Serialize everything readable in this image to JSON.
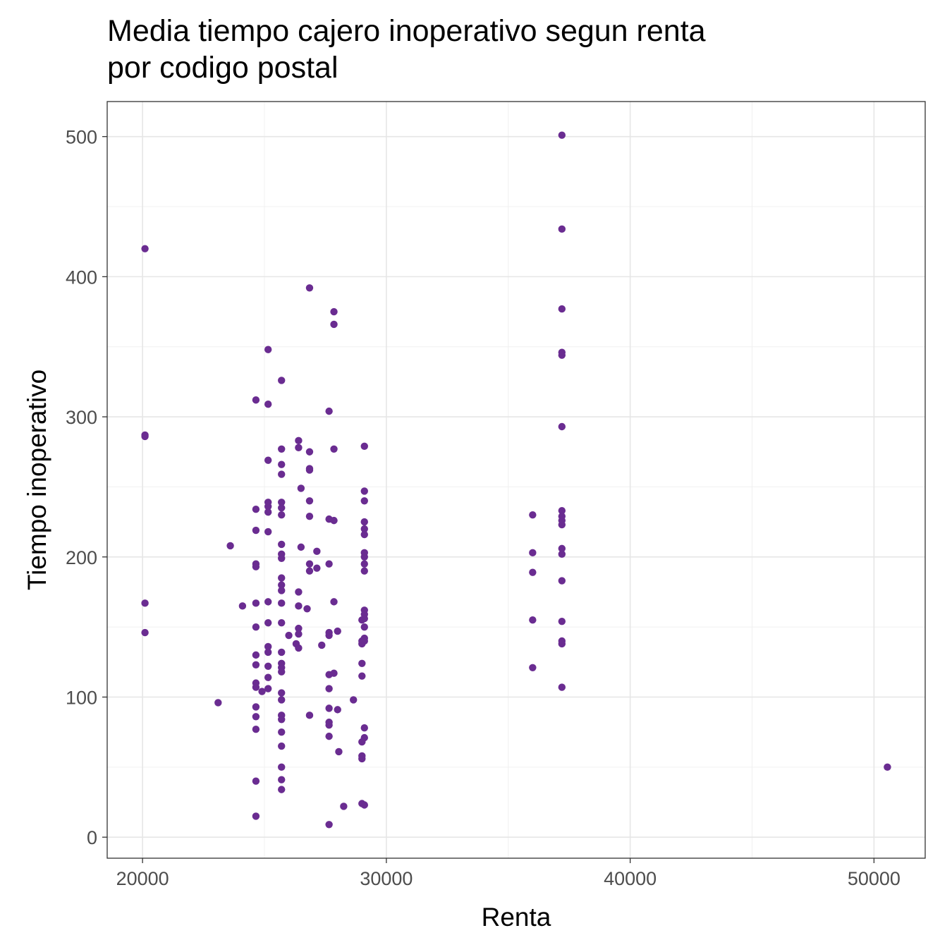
{
  "chart_data": {
    "type": "scatter",
    "title_lines": [
      "Media tiempo cajero inoperativo segun renta",
      "por codigo postal"
    ],
    "xlabel": "Renta",
    "ylabel": "Tiempo inoperativo",
    "xlim": [
      18550,
      52100
    ],
    "ylim": [
      -15,
      525
    ],
    "x_ticks": [
      20000,
      30000,
      40000,
      50000
    ],
    "y_ticks": [
      0,
      100,
      200,
      300,
      400,
      500
    ],
    "grid": true,
    "point_color": "#6a2c91",
    "points": [
      {
        "x": 20100,
        "y": 420
      },
      {
        "x": 20100,
        "y": 287
      },
      {
        "x": 20100,
        "y": 286
      },
      {
        "x": 20100,
        "y": 167
      },
      {
        "x": 20100,
        "y": 146
      },
      {
        "x": 23100,
        "y": 96
      },
      {
        "x": 23600,
        "y": 208
      },
      {
        "x": 24100,
        "y": 165
      },
      {
        "x": 24650,
        "y": 312
      },
      {
        "x": 24650,
        "y": 234
      },
      {
        "x": 24650,
        "y": 219
      },
      {
        "x": 24650,
        "y": 195
      },
      {
        "x": 24650,
        "y": 193
      },
      {
        "x": 24650,
        "y": 167
      },
      {
        "x": 24650,
        "y": 150
      },
      {
        "x": 24650,
        "y": 130
      },
      {
        "x": 24650,
        "y": 123
      },
      {
        "x": 24650,
        "y": 110
      },
      {
        "x": 24650,
        "y": 107
      },
      {
        "x": 24650,
        "y": 93
      },
      {
        "x": 24650,
        "y": 86
      },
      {
        "x": 24650,
        "y": 77
      },
      {
        "x": 24650,
        "y": 40
      },
      {
        "x": 24650,
        "y": 15
      },
      {
        "x": 24900,
        "y": 104
      },
      {
        "x": 25150,
        "y": 348
      },
      {
        "x": 25150,
        "y": 309
      },
      {
        "x": 25150,
        "y": 269
      },
      {
        "x": 25150,
        "y": 239
      },
      {
        "x": 25150,
        "y": 236
      },
      {
        "x": 25150,
        "y": 232
      },
      {
        "x": 25150,
        "y": 218
      },
      {
        "x": 25150,
        "y": 168
      },
      {
        "x": 25150,
        "y": 153
      },
      {
        "x": 25150,
        "y": 136
      },
      {
        "x": 25150,
        "y": 132
      },
      {
        "x": 25150,
        "y": 122
      },
      {
        "x": 25150,
        "y": 114
      },
      {
        "x": 25150,
        "y": 106
      },
      {
        "x": 25700,
        "y": 326
      },
      {
        "x": 25700,
        "y": 277
      },
      {
        "x": 25700,
        "y": 266
      },
      {
        "x": 25700,
        "y": 259
      },
      {
        "x": 25700,
        "y": 239
      },
      {
        "x": 25700,
        "y": 235
      },
      {
        "x": 25700,
        "y": 230
      },
      {
        "x": 25700,
        "y": 209
      },
      {
        "x": 25700,
        "y": 202
      },
      {
        "x": 25700,
        "y": 199
      },
      {
        "x": 25700,
        "y": 185
      },
      {
        "x": 25700,
        "y": 180
      },
      {
        "x": 25700,
        "y": 176
      },
      {
        "x": 25700,
        "y": 167
      },
      {
        "x": 25700,
        "y": 153
      },
      {
        "x": 25700,
        "y": 132
      },
      {
        "x": 25700,
        "y": 124
      },
      {
        "x": 25700,
        "y": 121
      },
      {
        "x": 25700,
        "y": 118
      },
      {
        "x": 25700,
        "y": 103
      },
      {
        "x": 25700,
        "y": 98
      },
      {
        "x": 25700,
        "y": 87
      },
      {
        "x": 25700,
        "y": 84
      },
      {
        "x": 25700,
        "y": 75
      },
      {
        "x": 25700,
        "y": 65
      },
      {
        "x": 25700,
        "y": 50
      },
      {
        "x": 25700,
        "y": 41
      },
      {
        "x": 25700,
        "y": 34
      },
      {
        "x": 26000,
        "y": 144
      },
      {
        "x": 26300,
        "y": 138
      },
      {
        "x": 26400,
        "y": 283
      },
      {
        "x": 26400,
        "y": 278
      },
      {
        "x": 26400,
        "y": 175
      },
      {
        "x": 26400,
        "y": 165
      },
      {
        "x": 26400,
        "y": 149
      },
      {
        "x": 26400,
        "y": 145
      },
      {
        "x": 26400,
        "y": 135
      },
      {
        "x": 26500,
        "y": 249
      },
      {
        "x": 26500,
        "y": 207
      },
      {
        "x": 26750,
        "y": 163
      },
      {
        "x": 26850,
        "y": 392
      },
      {
        "x": 26850,
        "y": 275
      },
      {
        "x": 26850,
        "y": 263
      },
      {
        "x": 26850,
        "y": 262
      },
      {
        "x": 26850,
        "y": 240
      },
      {
        "x": 26850,
        "y": 229
      },
      {
        "x": 26850,
        "y": 195
      },
      {
        "x": 26850,
        "y": 190
      },
      {
        "x": 26850,
        "y": 87
      },
      {
        "x": 27150,
        "y": 192
      },
      {
        "x": 27150,
        "y": 204
      },
      {
        "x": 27350,
        "y": 137
      },
      {
        "x": 27650,
        "y": 304
      },
      {
        "x": 27650,
        "y": 227
      },
      {
        "x": 27650,
        "y": 195
      },
      {
        "x": 27650,
        "y": 146
      },
      {
        "x": 27650,
        "y": 144
      },
      {
        "x": 27650,
        "y": 116
      },
      {
        "x": 27650,
        "y": 106
      },
      {
        "x": 27650,
        "y": 92
      },
      {
        "x": 27650,
        "y": 82
      },
      {
        "x": 27650,
        "y": 80
      },
      {
        "x": 27650,
        "y": 72
      },
      {
        "x": 27650,
        "y": 9
      },
      {
        "x": 27850,
        "y": 375
      },
      {
        "x": 27850,
        "y": 366
      },
      {
        "x": 27850,
        "y": 277
      },
      {
        "x": 27850,
        "y": 226
      },
      {
        "x": 27850,
        "y": 168
      },
      {
        "x": 27850,
        "y": 117
      },
      {
        "x": 28000,
        "y": 147
      },
      {
        "x": 28000,
        "y": 91
      },
      {
        "x": 28050,
        "y": 61
      },
      {
        "x": 28250,
        "y": 22
      },
      {
        "x": 28650,
        "y": 98
      },
      {
        "x": 29000,
        "y": 124
      },
      {
        "x": 29000,
        "y": 115
      },
      {
        "x": 29000,
        "y": 68
      },
      {
        "x": 29000,
        "y": 58
      },
      {
        "x": 29000,
        "y": 56
      },
      {
        "x": 29000,
        "y": 24
      },
      {
        "x": 29000,
        "y": 155
      },
      {
        "x": 29000,
        "y": 140
      },
      {
        "x": 29000,
        "y": 138
      },
      {
        "x": 29100,
        "y": 279
      },
      {
        "x": 29100,
        "y": 247
      },
      {
        "x": 29100,
        "y": 240
      },
      {
        "x": 29100,
        "y": 225
      },
      {
        "x": 29100,
        "y": 220
      },
      {
        "x": 29100,
        "y": 216
      },
      {
        "x": 29100,
        "y": 203
      },
      {
        "x": 29100,
        "y": 200
      },
      {
        "x": 29100,
        "y": 195
      },
      {
        "x": 29100,
        "y": 190
      },
      {
        "x": 29100,
        "y": 162
      },
      {
        "x": 29100,
        "y": 159
      },
      {
        "x": 29100,
        "y": 156
      },
      {
        "x": 29100,
        "y": 150
      },
      {
        "x": 29100,
        "y": 142
      },
      {
        "x": 29100,
        "y": 140
      },
      {
        "x": 29100,
        "y": 78
      },
      {
        "x": 29100,
        "y": 71
      },
      {
        "x": 29100,
        "y": 23
      },
      {
        "x": 36000,
        "y": 230
      },
      {
        "x": 36000,
        "y": 203
      },
      {
        "x": 36000,
        "y": 189
      },
      {
        "x": 36000,
        "y": 155
      },
      {
        "x": 36000,
        "y": 121
      },
      {
        "x": 37200,
        "y": 501
      },
      {
        "x": 37200,
        "y": 434
      },
      {
        "x": 37200,
        "y": 377
      },
      {
        "x": 37200,
        "y": 346
      },
      {
        "x": 37200,
        "y": 344
      },
      {
        "x": 37200,
        "y": 293
      },
      {
        "x": 37200,
        "y": 233
      },
      {
        "x": 37200,
        "y": 229
      },
      {
        "x": 37200,
        "y": 226
      },
      {
        "x": 37200,
        "y": 223
      },
      {
        "x": 37200,
        "y": 206
      },
      {
        "x": 37200,
        "y": 202
      },
      {
        "x": 37200,
        "y": 183
      },
      {
        "x": 37200,
        "y": 154
      },
      {
        "x": 37200,
        "y": 140
      },
      {
        "x": 37200,
        "y": 138
      },
      {
        "x": 37200,
        "y": 107
      },
      {
        "x": 50550,
        "y": 50
      }
    ]
  }
}
